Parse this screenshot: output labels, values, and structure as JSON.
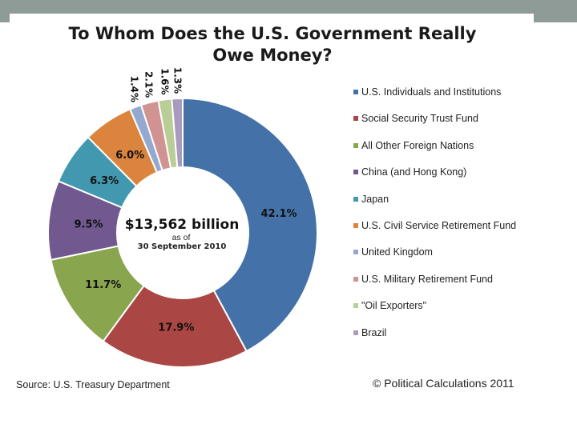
{
  "chart_data": {
    "type": "pie",
    "title": "To Whom Does the U.S. Government Really Owe Money?",
    "center_label": {
      "value": "$13,562 billion",
      "sub1": "as of",
      "sub2": "30 September 2010"
    },
    "slices": [
      {
        "name": "U.S. Individuals and Institutions",
        "value": 42.1,
        "label": "42.1%",
        "color": "#4472a8"
      },
      {
        "name": "Social Security Trust Fund",
        "value": 17.9,
        "label": "17.9%",
        "color": "#aa4643"
      },
      {
        "name": "All Other Foreign Nations",
        "value": 11.7,
        "label": "11.7%",
        "color": "#89a54e"
      },
      {
        "name": "China (and Hong Kong)",
        "value": 9.5,
        "label": "9.5%",
        "color": "#71588f"
      },
      {
        "name": "Japan",
        "value": 6.3,
        "label": "6.3%",
        "color": "#4198af"
      },
      {
        "name": "U.S. Civil Service Retirement Fund",
        "value": 6.0,
        "label": "6.0%",
        "color": "#db843d"
      },
      {
        "name": "United Kingdom",
        "value": 1.4,
        "label": "1.4%",
        "color": "#93a9cf"
      },
      {
        "name": "U.S. Military Retirement Fund",
        "value": 2.1,
        "label": "2.1%",
        "color": "#d19392"
      },
      {
        "name": "\"Oil Exporters\"",
        "value": 1.6,
        "label": "1.6%",
        "color": "#b9cd96"
      },
      {
        "name": "Brazil",
        "value": 1.3,
        "label": "1.3%",
        "color": "#a99bbd"
      }
    ]
  },
  "footer": {
    "source": "Source: U.S. Treasury Department",
    "credit": "© Political Calculations 2011"
  }
}
